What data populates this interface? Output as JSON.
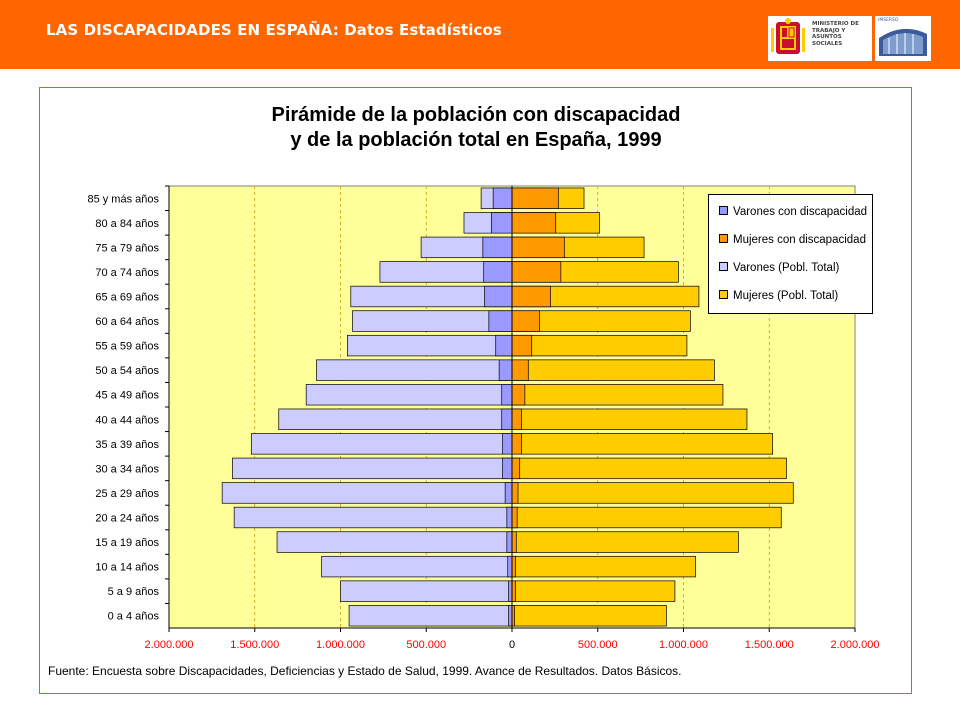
{
  "header": {
    "title_bold": "LAS DISCAPACIDADES EN ESPAÑA:",
    "title_rest": " Datos Estadísticos",
    "logo_ministerio_text": "MINISTERIO DE TRABAJO Y ASUNTOS SOCIALES",
    "logo_imserso_text": "IMSERSO"
  },
  "colors": {
    "header_bg": "#ff6600",
    "plot_bg": "#ffff99",
    "varones_disc": "#9999ff",
    "mujeres_disc": "#ff9900",
    "varones_total": "#ccccff",
    "mujeres_total": "#ffcc00",
    "tick_red": "#ff0000"
  },
  "chart_data": {
    "type": "bar",
    "orientation": "horizontal-pyramid",
    "title_line1": "Pirámide de la población con discapacidad",
    "title_line2": "y de la población total en España, 1999",
    "categories": [
      "85 y más años",
      "80 a 84 años",
      "75 a 79 años",
      "70 a 74 años",
      "65 a 69 años",
      "60 a 64 años",
      "55 a 59 años",
      "50 a 54 años",
      "45 a 49 años",
      "40 a 44 años",
      "35 a 39 años",
      "30 a 34 años",
      "25 a 29 años",
      "20 a 24 años",
      "15 a 19 años",
      "10 a 14 años",
      "5 a 9 años",
      "0 a 4 años"
    ],
    "series": [
      {
        "name": "Varones con discapacidad",
        "side": "left",
        "values": [
          110000,
          120000,
          170000,
          165000,
          160000,
          135000,
          95000,
          75000,
          60000,
          60000,
          55000,
          55000,
          40000,
          30000,
          30000,
          25000,
          20000,
          20000
        ]
      },
      {
        "name": "Mujeres con discapacidad",
        "side": "right",
        "values": [
          270000,
          255000,
          305000,
          285000,
          225000,
          160000,
          115000,
          95000,
          75000,
          55000,
          55000,
          45000,
          35000,
          30000,
          25000,
          20000,
          20000,
          15000
        ]
      },
      {
        "name": "Varones (Pobl. Total)",
        "side": "left",
        "values": [
          180000,
          280000,
          530000,
          770000,
          940000,
          930000,
          960000,
          1140000,
          1200000,
          1360000,
          1520000,
          1630000,
          1690000,
          1620000,
          1370000,
          1110000,
          1000000,
          950000
        ]
      },
      {
        "name": "Mujeres (Pobl. Total)",
        "side": "right",
        "values": [
          420000,
          510000,
          770000,
          970000,
          1090000,
          1040000,
          1020000,
          1180000,
          1230000,
          1370000,
          1520000,
          1600000,
          1640000,
          1570000,
          1320000,
          1070000,
          950000,
          900000
        ]
      }
    ],
    "x_ticks": [
      "2.000.000",
      "1.500.000",
      "1.000.000",
      "500.000",
      "0",
      "500.000",
      "1.000.000",
      "1.500.000",
      "2.000.000"
    ],
    "xlim": [
      -2000000,
      2000000
    ],
    "grid": true,
    "legend": "top-right",
    "source": "Fuente: Encuesta sobre Discapacidades, Deficiencias y Estado de Salud, 1999. Avance de Resultados. Datos Básicos."
  }
}
